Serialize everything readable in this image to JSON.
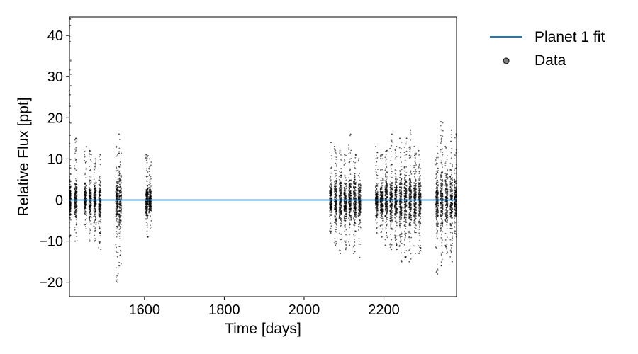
{
  "chart_data": {
    "type": "scatter",
    "xlabel": "Time [days]",
    "ylabel": "Relative Flux [ppt]",
    "xlim": [
      1412,
      2382
    ],
    "ylim": [
      -23.5,
      44.5
    ],
    "xticks": [
      1600,
      1800,
      2000,
      2200
    ],
    "yticks": [
      -20,
      -10,
      0,
      10,
      20,
      30,
      40
    ],
    "grid": false,
    "legend_position": "outside-right",
    "series": [
      {
        "name": "Planet 1 fit",
        "kind": "line",
        "color": "#1f77b4",
        "x": [
          1412,
          2382
        ],
        "y": [
          0,
          0
        ]
      },
      {
        "name": "Data",
        "kind": "scatter",
        "color": "#000000",
        "observation_groups": [
          {
            "x_start": 1412,
            "x_end": 1415,
            "y_min": -9,
            "y_max": 44
          },
          {
            "x_start": 1425,
            "x_end": 1431,
            "y_min": -10,
            "y_max": 15
          },
          {
            "x_start": 1449,
            "x_end": 1455,
            "y_min": -7,
            "y_max": 13
          },
          {
            "x_start": 1461,
            "x_end": 1467,
            "y_min": -10,
            "y_max": 12
          },
          {
            "x_start": 1473,
            "x_end": 1479,
            "y_min": -10,
            "y_max": 10
          },
          {
            "x_start": 1485,
            "x_end": 1491,
            "y_min": -12,
            "y_max": 11
          },
          {
            "x_start": 1528,
            "x_end": 1534,
            "y_min": -20,
            "y_max": 13
          },
          {
            "x_start": 1536,
            "x_end": 1542,
            "y_min": -16,
            "y_max": 16
          },
          {
            "x_start": 1603,
            "x_end": 1609,
            "y_min": -9,
            "y_max": 11
          },
          {
            "x_start": 1611,
            "x_end": 1617,
            "y_min": -7,
            "y_max": 10
          },
          {
            "x_start": 2064,
            "x_end": 2070,
            "y_min": -8,
            "y_max": 14
          },
          {
            "x_start": 2076,
            "x_end": 2082,
            "y_min": -11,
            "y_max": 13
          },
          {
            "x_start": 2088,
            "x_end": 2094,
            "y_min": -13,
            "y_max": 12
          },
          {
            "x_start": 2100,
            "x_end": 2106,
            "y_min": -12,
            "y_max": 11
          },
          {
            "x_start": 2112,
            "x_end": 2118,
            "y_min": -11,
            "y_max": 16
          },
          {
            "x_start": 2124,
            "x_end": 2130,
            "y_min": -13,
            "y_max": 11
          },
          {
            "x_start": 2136,
            "x_end": 2142,
            "y_min": -14,
            "y_max": 10
          },
          {
            "x_start": 2179,
            "x_end": 2185,
            "y_min": -8,
            "y_max": 13
          },
          {
            "x_start": 2191,
            "x_end": 2197,
            "y_min": -9,
            "y_max": 11
          },
          {
            "x_start": 2203,
            "x_end": 2209,
            "y_min": -11,
            "y_max": 12
          },
          {
            "x_start": 2215,
            "x_end": 2221,
            "y_min": -12,
            "y_max": 16
          },
          {
            "x_start": 2227,
            "x_end": 2233,
            "y_min": -12,
            "y_max": 13
          },
          {
            "x_start": 2239,
            "x_end": 2245,
            "y_min": -15,
            "y_max": 15
          },
          {
            "x_start": 2251,
            "x_end": 2257,
            "y_min": -14,
            "y_max": 15
          },
          {
            "x_start": 2263,
            "x_end": 2269,
            "y_min": -15,
            "y_max": 17
          },
          {
            "x_start": 2275,
            "x_end": 2281,
            "y_min": -13,
            "y_max": 13
          },
          {
            "x_start": 2287,
            "x_end": 2293,
            "y_min": -13,
            "y_max": 12
          },
          {
            "x_start": 2330,
            "x_end": 2336,
            "y_min": -18,
            "y_max": 13
          },
          {
            "x_start": 2342,
            "x_end": 2348,
            "y_min": -16,
            "y_max": 19
          },
          {
            "x_start": 2354,
            "x_end": 2360,
            "y_min": -13,
            "y_max": 13
          },
          {
            "x_start": 2366,
            "x_end": 2372,
            "y_min": -15,
            "y_max": 17
          },
          {
            "x_start": 2376,
            "x_end": 2382,
            "y_min": -9,
            "y_max": 16
          }
        ]
      }
    ]
  }
}
